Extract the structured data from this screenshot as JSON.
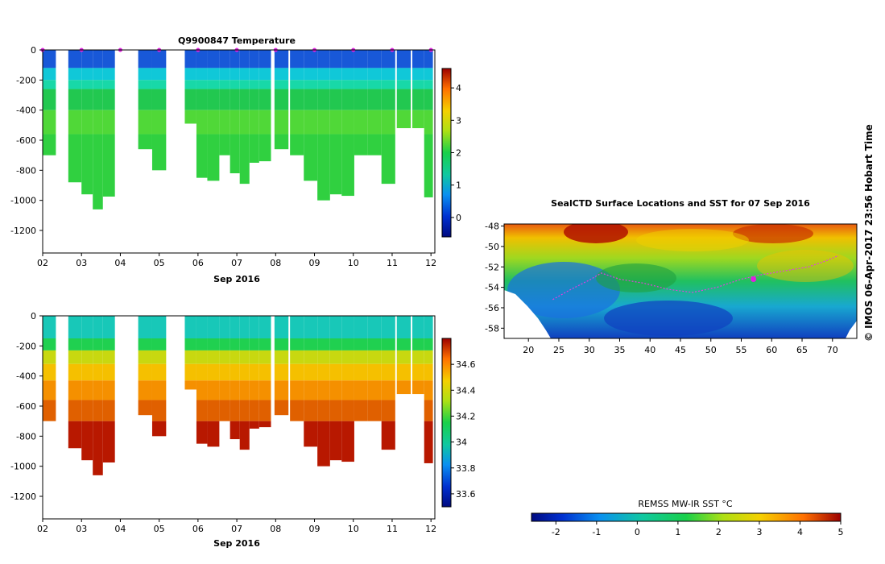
{
  "chart_data": [
    {
      "type": "heatmap",
      "title": "Q9900847  Temperature",
      "xlabel": "Sep 2016",
      "ylabel": "",
      "x_ticks": [
        "02",
        "03",
        "04",
        "05",
        "06",
        "07",
        "08",
        "09",
        "10",
        "11",
        "12"
      ],
      "y_ticks": [
        "0",
        "-200",
        "-400",
        "-600",
        "-800",
        "-1000",
        "-1200"
      ],
      "ylim": [
        -1350,
        0
      ],
      "xlim": [
        2,
        12.1
      ],
      "colorbar": {
        "min": -0.6,
        "max": 4.6,
        "ticks": [
          "0",
          "1",
          "2",
          "3",
          "4"
        ]
      },
      "profiles": [
        {
          "day": 2.16,
          "depth": -700
        },
        {
          "day": 2.84,
          "depth": -880
        },
        {
          "day": 3.16,
          "depth": -960
        },
        {
          "day": 3.42,
          "depth": -1060
        },
        {
          "day": 3.68,
          "depth": -975
        },
        {
          "day": 4.64,
          "depth": -660
        },
        {
          "day": 5.0,
          "depth": -800
        },
        {
          "day": 5.84,
          "depth": -490
        },
        {
          "day": 6.08,
          "depth": -850
        },
        {
          "day": 6.4,
          "depth": -870
        },
        {
          "day": 6.7,
          "depth": -700
        },
        {
          "day": 6.95,
          "depth": -820
        },
        {
          "day": 7.2,
          "depth": -890
        },
        {
          "day": 7.45,
          "depth": -750
        },
        {
          "day": 7.7,
          "depth": -740
        },
        {
          "day": 8.15,
          "depth": -660
        },
        {
          "day": 8.55,
          "depth": -700
        },
        {
          "day": 8.9,
          "depth": -870
        },
        {
          "day": 9.25,
          "depth": -1000
        },
        {
          "day": 9.55,
          "depth": -960
        },
        {
          "day": 9.85,
          "depth": -970
        },
        {
          "day": 10.2,
          "depth": -700
        },
        {
          "day": 10.55,
          "depth": -700
        },
        {
          "day": 10.9,
          "depth": -890
        },
        {
          "day": 11.3,
          "depth": -520
        },
        {
          "day": 11.7,
          "depth": -520
        },
        {
          "day": 11.95,
          "depth": -980
        }
      ]
    },
    {
      "type": "heatmap",
      "title": "",
      "xlabel": "Sep 2016",
      "x_ticks": [
        "02",
        "03",
        "04",
        "05",
        "06",
        "07",
        "08",
        "09",
        "10",
        "11",
        "12"
      ],
      "y_ticks": [
        "0",
        "-200",
        "-400",
        "-600",
        "-800",
        "-1000",
        "-1200"
      ],
      "ylim": [
        -1350,
        0
      ],
      "colorbar": {
        "min": 33.5,
        "max": 34.8,
        "ticks": [
          "33.6",
          "33.8",
          "34",
          "34.2",
          "34.4",
          "34.6"
        ]
      }
    },
    {
      "type": "heatmap",
      "title": "SealCTD Surface Locations and SST for 07 Sep 2016",
      "x_ticks": [
        "20",
        "25",
        "30",
        "35",
        "40",
        "45",
        "50",
        "55",
        "60",
        "65",
        "70"
      ],
      "y_ticks": [
        "-48",
        "-50",
        "-52",
        "-54",
        "-56",
        "-58"
      ],
      "xlim": [
        16,
        74
      ],
      "ylim": [
        -59,
        -47.8
      ],
      "track": [
        [
          24,
          -55.2
        ],
        [
          27,
          -54.2
        ],
        [
          30,
          -53.3
        ],
        [
          32,
          -52.6
        ],
        [
          35,
          -53.2
        ],
        [
          39,
          -53.6
        ],
        [
          43,
          -54.2
        ],
        [
          47,
          -54.5
        ],
        [
          51,
          -54.0
        ],
        [
          55,
          -53.2
        ],
        [
          58,
          -52.8
        ],
        [
          62,
          -52.4
        ],
        [
          66,
          -52.0
        ],
        [
          69,
          -51.4
        ],
        [
          71,
          -50.9
        ]
      ],
      "position": [
        57,
        -53.2
      ],
      "colorbar": {
        "label": "REMSS MW-IR SST °C",
        "min": -2.6,
        "max": 5,
        "ticks": [
          "-2",
          "-1",
          "0",
          "1",
          "2",
          "3",
          "4",
          "5"
        ]
      }
    }
  ],
  "credit": "© IMOS 06-Apr-2017 23:56 Hobart Time"
}
